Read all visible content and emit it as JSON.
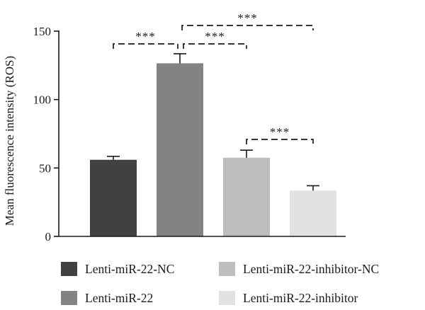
{
  "chart_data": {
    "type": "bar",
    "ylabel": "Mean fluorescence intensity (ROS)",
    "ylim": [
      0,
      150
    ],
    "yticks": [
      0,
      50,
      100,
      150
    ],
    "grid": false,
    "legend_position": "bottom",
    "categories": [
      "Lenti-miR-22-NC",
      "Lenti-miR-22",
      "Lenti-miR-22-inhibitor-NC",
      "Lenti-miR-22-inhibitor"
    ],
    "values": [
      56,
      126.5,
      57.5,
      33.5
    ],
    "errors": [
      2.5,
      7,
      5.5,
      3.5
    ],
    "colors": [
      "#414141",
      "#838383",
      "#bebebe",
      "#e2e2e2"
    ],
    "significance": [
      {
        "from": 0,
        "to": 1,
        "label": "***"
      },
      {
        "from": 1,
        "to": 2,
        "label": "***"
      },
      {
        "from": 1,
        "to": 3,
        "label": "***"
      },
      {
        "from": 2,
        "to": 3,
        "label": "***"
      }
    ]
  }
}
